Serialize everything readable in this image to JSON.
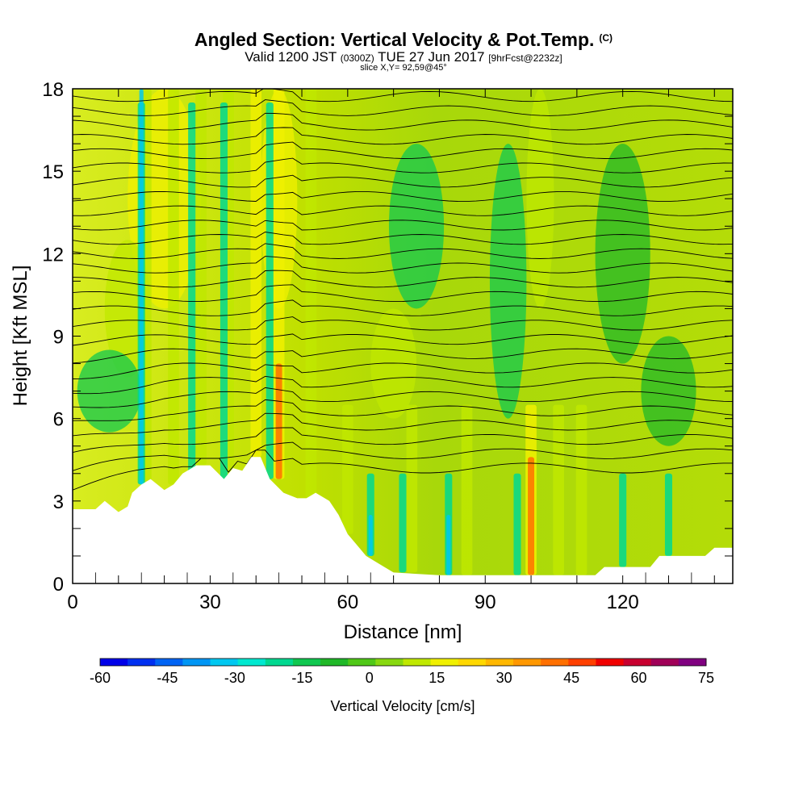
{
  "title": {
    "main": "Angled Section: Vertical Velocity & Pot.Temp.",
    "unit_tag": "(C)",
    "valid_prefix": "Valid 1200 JST",
    "valid_utc": "(0300Z)",
    "valid_date": "TUE 27 Jun 2017",
    "forecast_info": "[9hrFcst@2232z]",
    "slice": "slice X,Y= 92,59@45°"
  },
  "chart_data": {
    "type": "heatmap",
    "xlabel": "Distance [nm]",
    "ylabel": "Height [Kft MSL]",
    "xlim": [
      0,
      144
    ],
    "ylim": [
      0,
      18
    ],
    "x_ticks": [
      0,
      30,
      60,
      90,
      120
    ],
    "y_ticks": [
      0,
      3,
      6,
      9,
      12,
      15,
      18
    ],
    "colorbar": {
      "label": "Vertical Velocity [cm/s]",
      "range": [
        -60,
        75
      ],
      "ticks": [
        -60,
        -45,
        -30,
        -15,
        0,
        15,
        30,
        45,
        60,
        75
      ],
      "colors": [
        "#0000e8",
        "#0030f0",
        "#0064f4",
        "#0096f4",
        "#00c8f0",
        "#00e8d0",
        "#00d890",
        "#10c850",
        "#20b828",
        "#50c818",
        "#88d810",
        "#c0e800",
        "#f0f000",
        "#ffd800",
        "#ffb800",
        "#ff9800",
        "#ff7000",
        "#ff4000",
        "#f00000",
        "#c80030",
        "#a00058",
        "#800080"
      ]
    },
    "terrain_kft": [
      [
        0,
        2.7
      ],
      [
        5,
        2.7
      ],
      [
        7,
        3.0
      ],
      [
        10,
        2.6
      ],
      [
        12,
        2.8
      ],
      [
        13,
        3.3
      ],
      [
        15,
        3.6
      ],
      [
        17,
        3.8
      ],
      [
        20,
        3.4
      ],
      [
        22,
        3.6
      ],
      [
        24,
        4.0
      ],
      [
        27,
        4.3
      ],
      [
        30,
        4.3
      ],
      [
        33,
        3.8
      ],
      [
        35,
        4.2
      ],
      [
        37,
        4.1
      ],
      [
        39,
        4.6
      ],
      [
        41,
        4.6
      ],
      [
        43,
        3.8
      ],
      [
        46,
        3.3
      ],
      [
        49,
        3.1
      ],
      [
        51,
        3.1
      ],
      [
        53,
        3.3
      ],
      [
        56,
        3.0
      ],
      [
        58,
        2.5
      ],
      [
        60,
        1.8
      ],
      [
        62,
        1.4
      ],
      [
        64,
        1.0
      ],
      [
        66,
        0.8
      ],
      [
        68,
        0.6
      ],
      [
        70,
        0.4
      ],
      [
        75,
        0.35
      ],
      [
        80,
        0.3
      ],
      [
        90,
        0.3
      ],
      [
        100,
        0.3
      ],
      [
        110,
        0.3
      ],
      [
        114,
        0.3
      ],
      [
        116,
        0.6
      ],
      [
        126,
        0.6
      ],
      [
        128,
        1.0
      ],
      [
        138,
        1.0
      ],
      [
        140,
        1.3
      ],
      [
        144,
        1.3
      ]
    ],
    "updraft_columns_x": [
      16,
      22,
      28,
      34,
      40,
      45,
      52,
      60,
      74,
      86,
      100,
      106,
      111
    ],
    "downdraft_columns_x": [
      15,
      26,
      33,
      43,
      65,
      72,
      82,
      97,
      120,
      130
    ]
  }
}
